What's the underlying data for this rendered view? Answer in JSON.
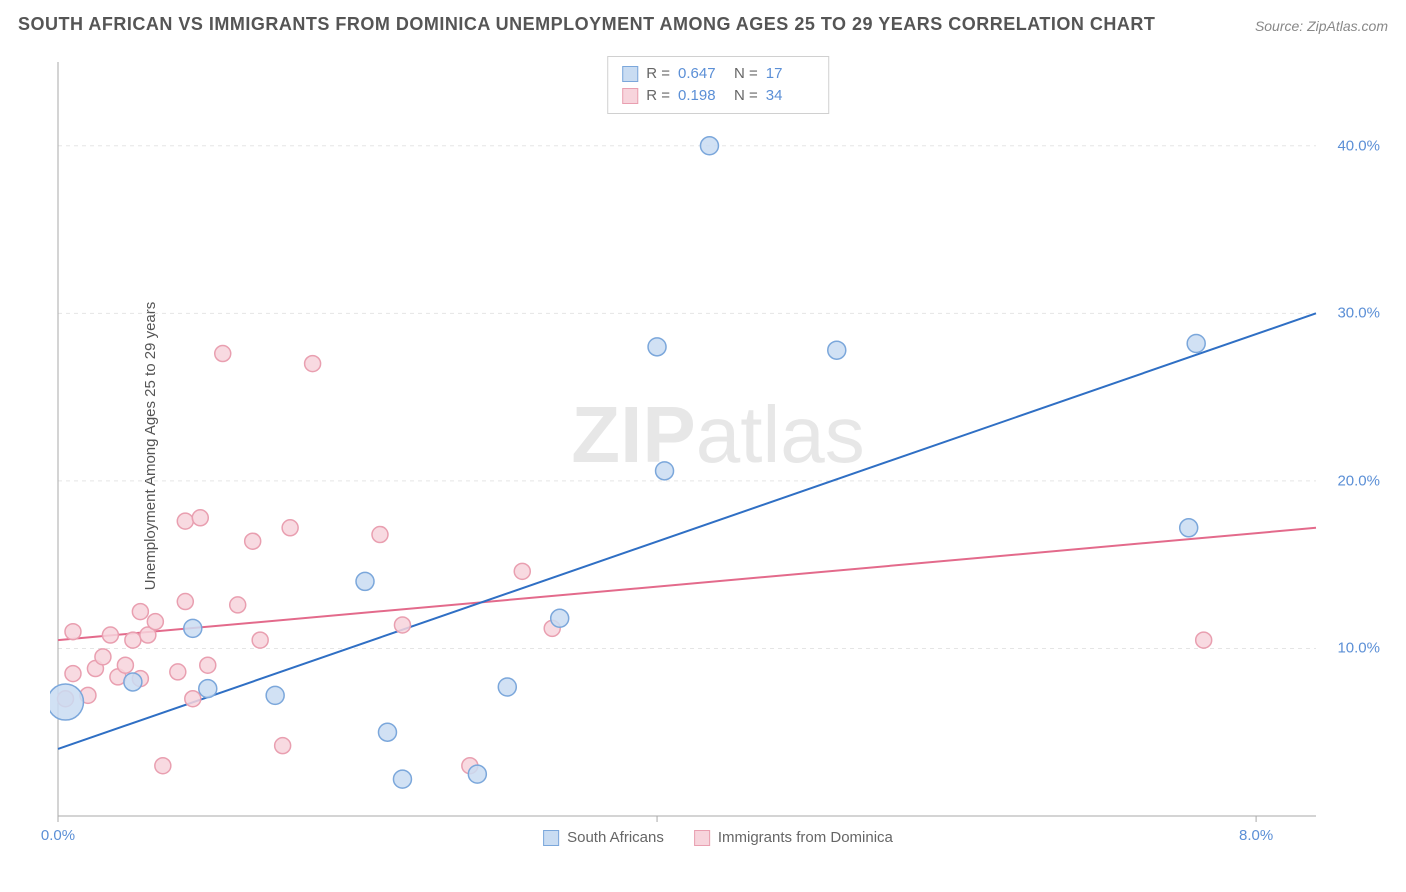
{
  "title": "SOUTH AFRICAN VS IMMIGRANTS FROM DOMINICA UNEMPLOYMENT AMONG AGES 25 TO 29 YEARS CORRELATION CHART",
  "source": "Source: ZipAtlas.com",
  "ylabel": "Unemployment Among Ages 25 to 29 years",
  "watermark_a": "ZIP",
  "watermark_b": "atlas",
  "chart": {
    "type": "scatter-with-regression",
    "xlim": [
      0,
      8.4
    ],
    "ylim": [
      0,
      45
    ],
    "xtick_positions": [
      0.0,
      4.0,
      8.0
    ],
    "xtick_labels": [
      "0.0%",
      "",
      "8.0%"
    ],
    "ytick_positions": [
      10.0,
      20.0,
      30.0,
      40.0
    ],
    "ytick_labels": [
      "10.0%",
      "20.0%",
      "30.0%",
      "40.0%"
    ],
    "grid_color": "#e5e5e5",
    "axis_color": "#aaaaaa",
    "background_color": "#ffffff",
    "label_color": "#5b8fd6",
    "series": [
      {
        "name": "South Africans",
        "fill": "#c9dcf2",
        "stroke": "#7ba7db",
        "line_color": "#2f6fc4",
        "R": "0.647",
        "N": "17",
        "points": [
          {
            "x": 0.05,
            "y": 6.8,
            "r": 18
          },
          {
            "x": 0.5,
            "y": 8.0,
            "r": 9
          },
          {
            "x": 0.9,
            "y": 11.2,
            "r": 9
          },
          {
            "x": 1.0,
            "y": 7.6,
            "r": 9
          },
          {
            "x": 1.45,
            "y": 7.2,
            "r": 9
          },
          {
            "x": 2.05,
            "y": 14.0,
            "r": 9
          },
          {
            "x": 2.2,
            "y": 5.0,
            "r": 9
          },
          {
            "x": 2.3,
            "y": 2.2,
            "r": 9
          },
          {
            "x": 2.8,
            "y": 2.5,
            "r": 9
          },
          {
            "x": 3.0,
            "y": 7.7,
            "r": 9
          },
          {
            "x": 3.35,
            "y": 11.8,
            "r": 9
          },
          {
            "x": 4.0,
            "y": 28.0,
            "r": 9
          },
          {
            "x": 4.05,
            "y": 20.6,
            "r": 9
          },
          {
            "x": 4.35,
            "y": 40.0,
            "r": 9
          },
          {
            "x": 5.2,
            "y": 27.8,
            "r": 9
          },
          {
            "x": 7.6,
            "y": 28.2,
            "r": 9
          },
          {
            "x": 7.55,
            "y": 17.2,
            "r": 9
          }
        ],
        "regression": {
          "x1": 0.0,
          "y1": 4.0,
          "x2": 8.4,
          "y2": 30.0
        }
      },
      {
        "name": "Immigrants from Dominica",
        "fill": "#f7d4dc",
        "stroke": "#e99fb0",
        "line_color": "#e36a8b",
        "R": "0.198",
        "N": "34",
        "points": [
          {
            "x": 0.05,
            "y": 7.0,
            "r": 8
          },
          {
            "x": 0.1,
            "y": 11.0,
            "r": 8
          },
          {
            "x": 0.1,
            "y": 8.5,
            "r": 8
          },
          {
            "x": 0.2,
            "y": 7.2,
            "r": 8
          },
          {
            "x": 0.25,
            "y": 8.8,
            "r": 8
          },
          {
            "x": 0.3,
            "y": 9.5,
            "r": 8
          },
          {
            "x": 0.35,
            "y": 10.8,
            "r": 8
          },
          {
            "x": 0.4,
            "y": 8.3,
            "r": 8
          },
          {
            "x": 0.45,
            "y": 9.0,
            "r": 8
          },
          {
            "x": 0.5,
            "y": 10.5,
            "r": 8
          },
          {
            "x": 0.55,
            "y": 8.2,
            "r": 8
          },
          {
            "x": 0.55,
            "y": 12.2,
            "r": 8
          },
          {
            "x": 0.6,
            "y": 10.8,
            "r": 8
          },
          {
            "x": 0.65,
            "y": 11.6,
            "r": 8
          },
          {
            "x": 0.7,
            "y": 3.0,
            "r": 8
          },
          {
            "x": 0.8,
            "y": 8.6,
            "r": 8
          },
          {
            "x": 0.85,
            "y": 12.8,
            "r": 8
          },
          {
            "x": 0.85,
            "y": 17.6,
            "r": 8
          },
          {
            "x": 0.9,
            "y": 7.0,
            "r": 8
          },
          {
            "x": 0.95,
            "y": 17.8,
            "r": 8
          },
          {
            "x": 1.0,
            "y": 9.0,
            "r": 8
          },
          {
            "x": 1.1,
            "y": 27.6,
            "r": 8
          },
          {
            "x": 1.2,
            "y": 12.6,
            "r": 8
          },
          {
            "x": 1.3,
            "y": 16.4,
            "r": 8
          },
          {
            "x": 1.35,
            "y": 10.5,
            "r": 8
          },
          {
            "x": 1.5,
            "y": 4.2,
            "r": 8
          },
          {
            "x": 1.55,
            "y": 17.2,
            "r": 8
          },
          {
            "x": 1.7,
            "y": 27.0,
            "r": 8
          },
          {
            "x": 2.15,
            "y": 16.8,
            "r": 8
          },
          {
            "x": 2.3,
            "y": 11.4,
            "r": 8
          },
          {
            "x": 2.75,
            "y": 3.0,
            "r": 8
          },
          {
            "x": 3.1,
            "y": 14.6,
            "r": 8
          },
          {
            "x": 3.3,
            "y": 11.2,
            "r": 8
          },
          {
            "x": 7.65,
            "y": 10.5,
            "r": 8
          }
        ],
        "regression": {
          "x1": 0.0,
          "y1": 10.5,
          "x2": 8.4,
          "y2": 17.2
        }
      }
    ]
  },
  "legend_top": {
    "rows": [
      {
        "swatch_fill": "#c9dcf2",
        "swatch_stroke": "#7ba7db",
        "r_lab": "R =",
        "r_val": "0.647",
        "n_lab": "N =",
        "n_val": "17"
      },
      {
        "swatch_fill": "#f7d4dc",
        "swatch_stroke": "#e99fb0",
        "r_lab": "R =",
        "r_val": "0.198",
        "n_lab": "N =",
        "n_val": "34"
      }
    ]
  },
  "legend_bottom": {
    "items": [
      {
        "swatch_fill": "#c9dcf2",
        "swatch_stroke": "#7ba7db",
        "label": "South Africans"
      },
      {
        "swatch_fill": "#f7d4dc",
        "swatch_stroke": "#e99fb0",
        "label": "Immigrants from Dominica"
      }
    ]
  }
}
